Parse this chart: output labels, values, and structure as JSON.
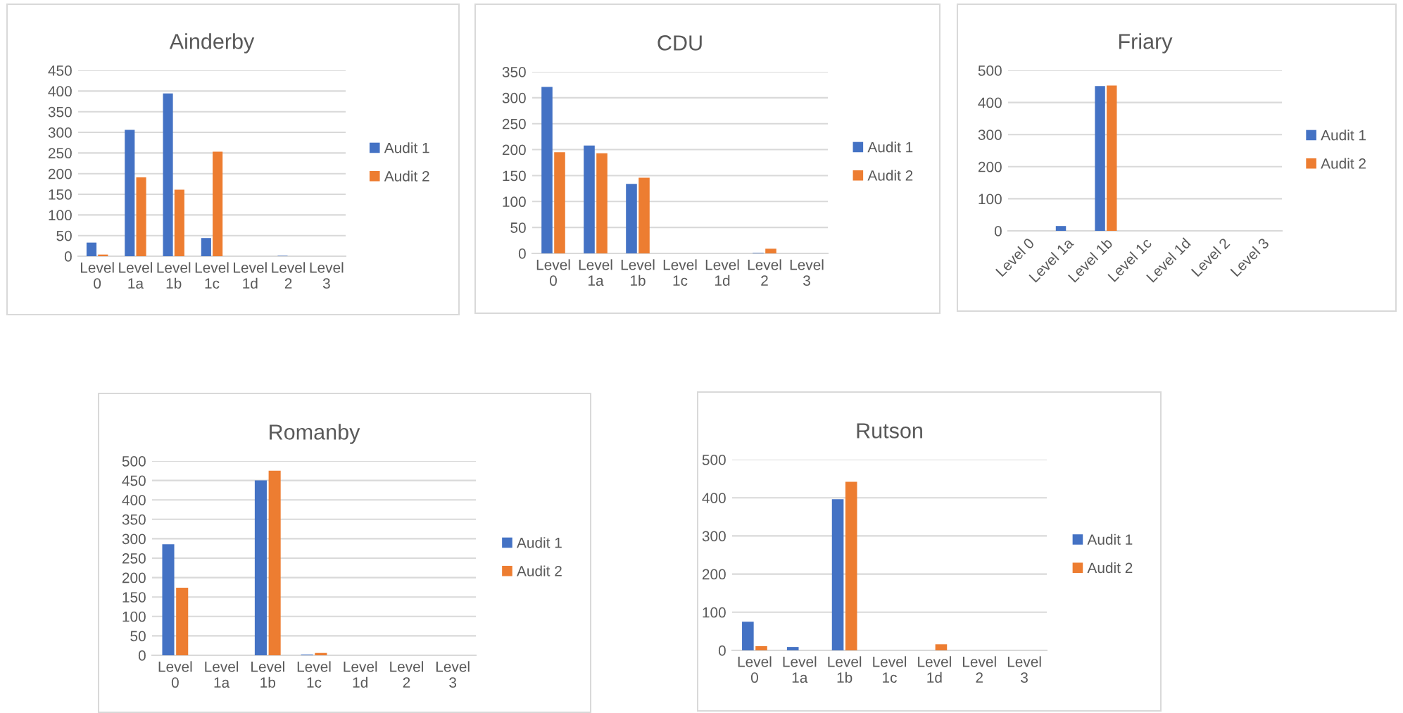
{
  "chart_data": [
    {
      "type": "bar",
      "title": "Ainderby",
      "categories": [
        "Level 0",
        "Level 1a",
        "Level 1b",
        "Level 1c",
        "Level 1d",
        "Level 2",
        "Level 3"
      ],
      "ylim": [
        0,
        450
      ],
      "yticks": [
        0,
        50,
        100,
        150,
        200,
        250,
        300,
        350,
        400,
        450
      ],
      "grid": "y",
      "legend": "right",
      "series": [
        {
          "name": "Audit 1",
          "color": "#4472c4",
          "values": [
            33,
            306,
            394,
            44,
            0,
            1,
            0
          ]
        },
        {
          "name": "Audit 2",
          "color": "#ed7d31",
          "values": [
            4,
            191,
            161,
            253,
            0,
            0,
            0
          ]
        }
      ]
    },
    {
      "type": "bar",
      "title": "CDU",
      "categories": [
        "Level 0",
        "Level 1a",
        "Level 1b",
        "Level 1c",
        "Level 1d",
        "Level 2",
        "Level 3"
      ],
      "ylim": [
        0,
        350
      ],
      "yticks": [
        0,
        50,
        100,
        150,
        200,
        250,
        300,
        350
      ],
      "grid": "y",
      "legend": "right",
      "series": [
        {
          "name": "Audit 1",
          "color": "#4472c4",
          "values": [
            321,
            208,
            134,
            0,
            0,
            1,
            0
          ]
        },
        {
          "name": "Audit 2",
          "color": "#ed7d31",
          "values": [
            195,
            193,
            146,
            0,
            0,
            9,
            0
          ]
        }
      ]
    },
    {
      "type": "bar",
      "title": "Friary",
      "categories": [
        "Level 0",
        "Level 1a",
        "Level 1b",
        "Level 1c",
        "Level 1d",
        "Level 2",
        "Level 3"
      ],
      "ylim": [
        0,
        500
      ],
      "yticks": [
        0,
        100,
        200,
        300,
        400,
        500
      ],
      "grid": "y",
      "legend": "right",
      "series": [
        {
          "name": "Audit 1",
          "color": "#4472c4",
          "values": [
            0,
            15,
            451,
            0,
            0,
            0,
            0
          ]
        },
        {
          "name": "Audit 2",
          "color": "#ed7d31",
          "values": [
            0,
            0,
            453,
            0,
            0,
            0,
            0
          ]
        }
      ]
    },
    {
      "type": "bar",
      "title": "Romanby",
      "categories": [
        "Level 0",
        "Level 1a",
        "Level 1b",
        "Level 1c",
        "Level 1d",
        "Level 2",
        "Level 3"
      ],
      "ylim": [
        0,
        500
      ],
      "yticks": [
        0,
        50,
        100,
        150,
        200,
        250,
        300,
        350,
        400,
        450,
        500
      ],
      "grid": "y",
      "legend": "right",
      "series": [
        {
          "name": "Audit 1",
          "color": "#4472c4",
          "values": [
            286,
            0,
            450,
            2,
            0,
            0,
            0
          ]
        },
        {
          "name": "Audit 2",
          "color": "#ed7d31",
          "values": [
            174,
            0,
            475,
            6,
            0,
            0,
            0
          ]
        }
      ]
    },
    {
      "type": "bar",
      "title": "Rutson",
      "categories": [
        "Level 0",
        "Level 1a",
        "Level 1b",
        "Level 1c",
        "Level 1d",
        "Level 2",
        "Level 3"
      ],
      "ylim": [
        0,
        500
      ],
      "yticks": [
        0,
        100,
        200,
        300,
        400,
        500
      ],
      "grid": "y",
      "legend": "right",
      "series": [
        {
          "name": "Audit 1",
          "color": "#4472c4",
          "values": [
            75,
            9,
            396,
            0,
            0,
            0,
            0
          ]
        },
        {
          "name": "Audit 2",
          "color": "#ed7d31",
          "values": [
            11,
            0,
            442,
            0,
            16,
            0,
            0
          ]
        }
      ]
    }
  ]
}
